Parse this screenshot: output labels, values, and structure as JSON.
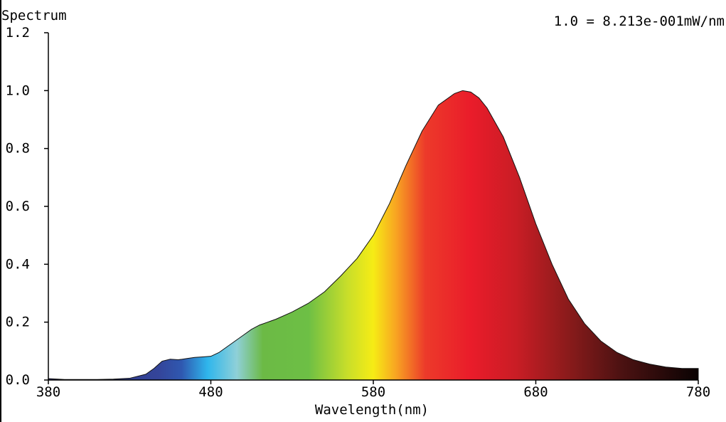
{
  "chart_data": {
    "type": "area",
    "title": "Spectrum",
    "scale_note": "1.0 = 8.213e-001mW/nm",
    "xlabel": "Wavelength(nm)",
    "ylabel": "",
    "xlim": [
      380,
      780
    ],
    "ylim": [
      0,
      1.2
    ],
    "x_ticks": [
      380,
      480,
      580,
      680,
      780
    ],
    "x_tick_labels": [
      "380",
      "480",
      "580",
      "680",
      "780"
    ],
    "y_ticks": [
      0,
      0.2,
      0.4,
      0.6,
      0.8,
      1.0,
      1.2
    ],
    "y_tick_labels": [
      "0.0",
      "0.2",
      "0.4",
      "0.6",
      "0.8",
      "1.0",
      "1.2"
    ],
    "grid": false,
    "fill": "wavelength-color-gradient",
    "series": [
      {
        "x": [
          380,
          390,
          400,
          410,
          420,
          430,
          440,
          445,
          450,
          455,
          460,
          465,
          470,
          475,
          480,
          485,
          490,
          495,
          500,
          505,
          510,
          515,
          520,
          530,
          540,
          550,
          560,
          570,
          580,
          590,
          600,
          610,
          620,
          630,
          635,
          640,
          645,
          650,
          660,
          670,
          680,
          690,
          700,
          710,
          720,
          730,
          740,
          750,
          760,
          770,
          780
        ],
        "values": [
          0.005,
          0.002,
          0.002,
          0.002,
          0.003,
          0.006,
          0.02,
          0.04,
          0.065,
          0.072,
          0.07,
          0.074,
          0.078,
          0.08,
          0.082,
          0.095,
          0.115,
          0.135,
          0.155,
          0.175,
          0.19,
          0.2,
          0.21,
          0.235,
          0.265,
          0.305,
          0.36,
          0.42,
          0.5,
          0.61,
          0.74,
          0.86,
          0.95,
          0.99,
          1.0,
          0.995,
          0.975,
          0.94,
          0.84,
          0.7,
          0.54,
          0.4,
          0.28,
          0.195,
          0.135,
          0.095,
          0.07,
          0.055,
          0.045,
          0.04,
          0.04
        ]
      }
    ]
  }
}
